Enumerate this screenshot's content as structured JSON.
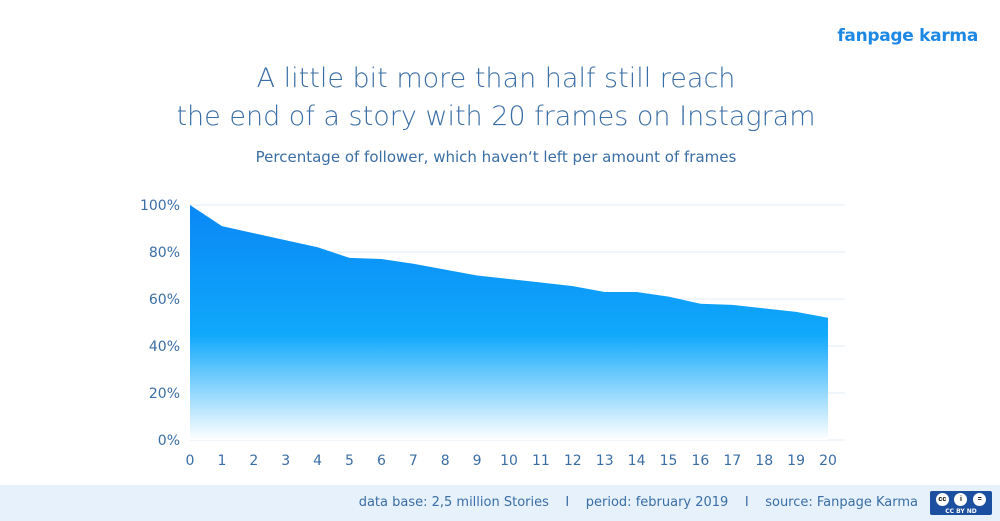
{
  "brand": "fanpage karma",
  "chart_data": {
    "type": "area",
    "title": [
      "A little bit more than half still reach",
      "the end of a story with 20 frames on Instagram"
    ],
    "subtitle": "Percentage of follower, which haven‘t left per amount of frames",
    "x": [
      0,
      1,
      2,
      3,
      4,
      5,
      6,
      7,
      8,
      9,
      10,
      11,
      12,
      13,
      14,
      15,
      16,
      17,
      18,
      19,
      20
    ],
    "values": [
      100,
      91,
      88,
      85,
      82,
      77.5,
      77,
      75,
      72.5,
      70,
      68.5,
      67,
      65.5,
      63,
      63,
      61,
      58,
      57.5,
      56,
      54.5,
      52
    ],
    "y_ticks": [
      "0%",
      "20%",
      "40%",
      "60%",
      "80%",
      "100%"
    ],
    "y_tick_values": [
      0,
      20,
      40,
      60,
      80,
      100
    ],
    "ylim": [
      0,
      100
    ],
    "xlabel": "",
    "ylabel": "",
    "grid": true,
    "color": "#0a8cf5"
  },
  "footer": {
    "text": "data base: 2,5 million Stories    I    period: february 2019    I    source: Fanpage Karma",
    "license": "CC BY ND"
  }
}
